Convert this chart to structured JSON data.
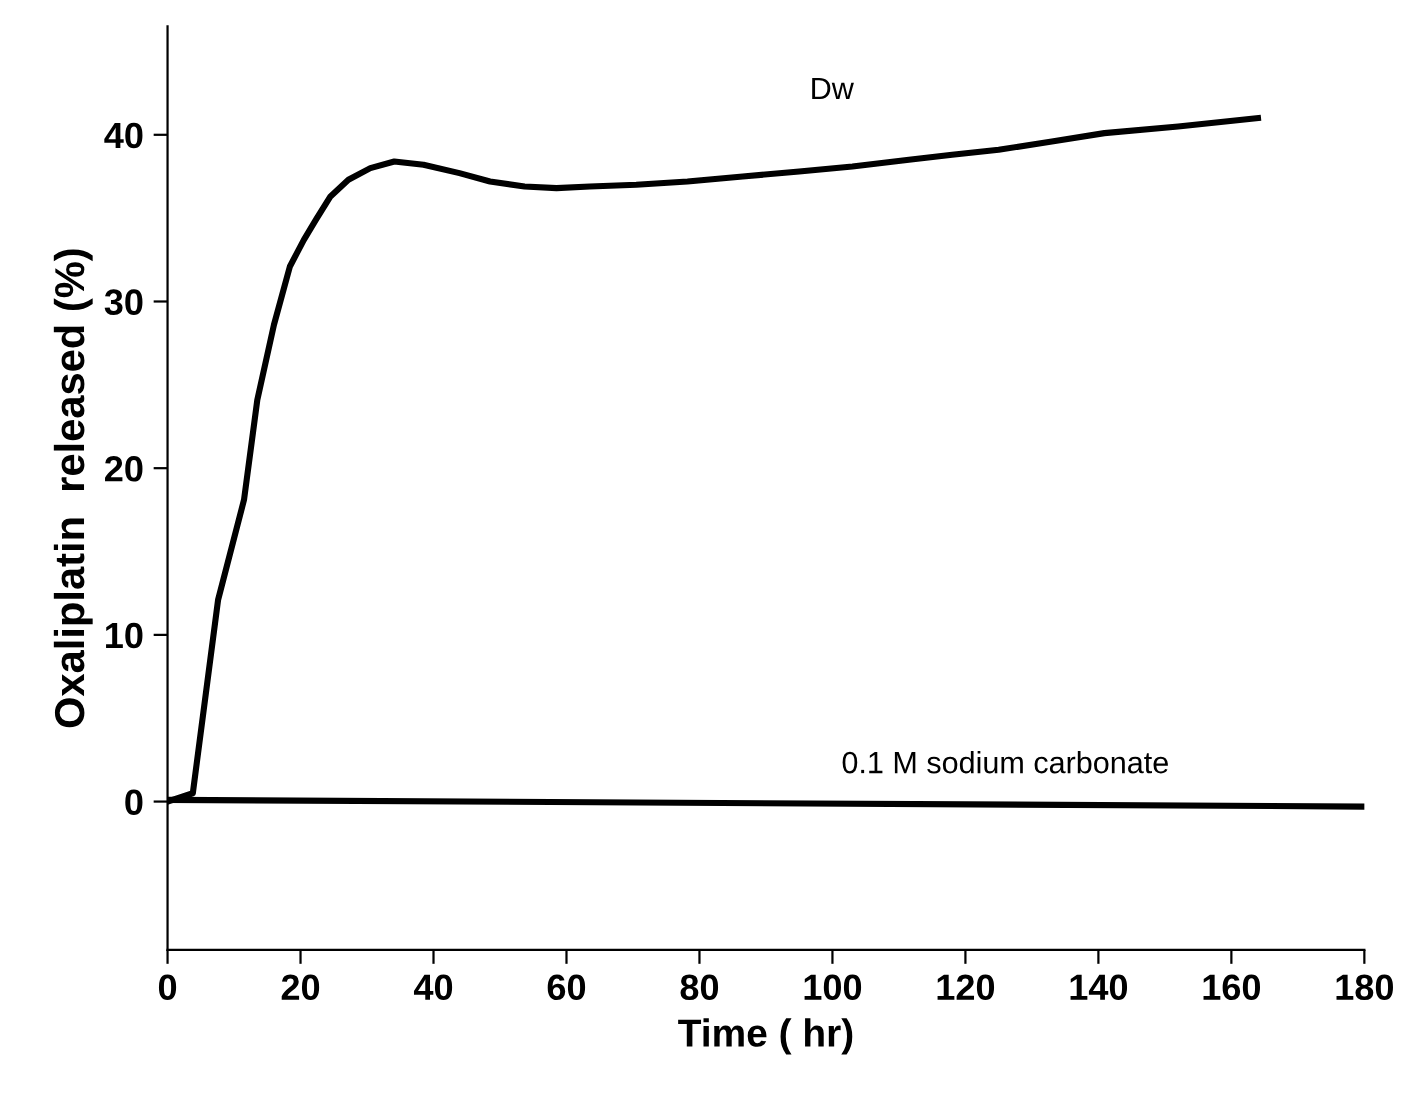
{
  "chart_data": {
    "type": "line",
    "xlabel": "Time ( hr)",
    "ylabel": "Oxaliplatin  released (%)",
    "xlim": [
      0,
      180
    ],
    "xticks": [
      0,
      20,
      40,
      60,
      80,
      100,
      120,
      140,
      160,
      180
    ],
    "ylim": [
      -8.9,
      46.5
    ],
    "yticks": [
      0,
      10,
      20,
      30,
      40
    ],
    "grid": false,
    "legend": false,
    "marker": "none",
    "line_style": "solid",
    "series": [
      {
        "name": "Dw",
        "color": "#000000",
        "x": [
          0,
          3.8,
          7.6,
          11.5,
          13.5,
          16,
          18.4,
          20.5,
          22.3,
          24.5,
          27.2,
          30.5,
          34.1,
          38.5,
          43.9,
          48.5,
          53.7,
          58.5,
          63.5,
          70.5,
          78.2,
          86.5,
          95,
          103,
          111.5,
          118,
          125,
          133,
          140.9,
          152,
          164
        ],
        "values": [
          0,
          0.5,
          12.1,
          18.1,
          24.1,
          28.6,
          32.1,
          33.7,
          34.9,
          36.3,
          37.3,
          38.0,
          38.4,
          38.2,
          37.7,
          37.2,
          36.9,
          36.8,
          36.9,
          37.0,
          37.2,
          37.5,
          37.8,
          38.1,
          38.5,
          38.8,
          39.1,
          39.6,
          40.1,
          40.5,
          41.0
        ]
      },
      {
        "name": "0.1 M sodium carbonate",
        "color": "#000000",
        "x": [
          0,
          180
        ],
        "values": [
          0.1,
          -0.3
        ]
      }
    ]
  }
}
